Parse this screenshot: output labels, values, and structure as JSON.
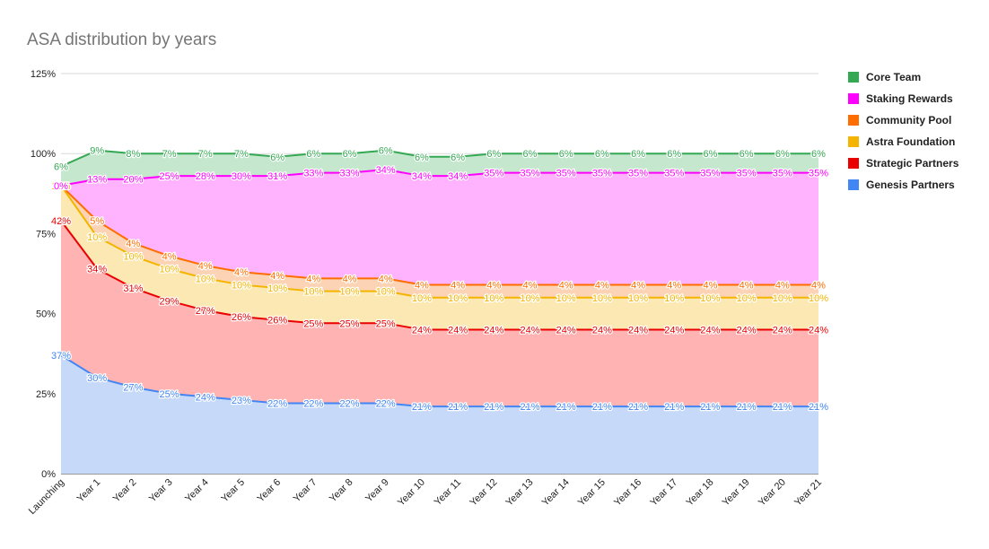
{
  "chart_data": {
    "type": "area",
    "title": "ASA distribution by years",
    "stacked": true,
    "ylim": [
      0,
      125
    ],
    "yticks": [
      "0%",
      "25%",
      "50%",
      "75%",
      "100%",
      "125%"
    ],
    "grid": true,
    "legend_position": "right",
    "categories": [
      "Launching",
      "Year 1",
      "Year 2",
      "Year 3",
      "Year 4",
      "Year 5",
      "Year 6",
      "Year 7",
      "Year 8",
      "Year 9",
      "Year 10",
      "Year 11",
      "Year 12",
      "Year 13",
      "Year 14",
      "Year 15",
      "Year 16",
      "Year 17",
      "Year 18",
      "Year 19",
      "Year 20",
      "Year 21"
    ],
    "series": [
      {
        "name": "Genesis Partners",
        "color": "#4285f4",
        "fill": "#c6d9f9",
        "values": [
          37,
          30,
          27,
          25,
          24,
          23,
          22,
          22,
          22,
          22,
          21,
          21,
          21,
          21,
          21,
          21,
          21,
          21,
          21,
          21,
          21,
          21
        ]
      },
      {
        "name": "Strategic Partners",
        "color": "#ea0000",
        "fill": "#ffb3b3",
        "values": [
          42,
          34,
          31,
          29,
          27,
          26,
          26,
          25,
          25,
          25,
          24,
          24,
          24,
          24,
          24,
          24,
          24,
          24,
          24,
          24,
          24,
          24
        ]
      },
      {
        "name": "Astra Foundation",
        "color": "#f4b400",
        "fill": "#fce8b2",
        "values": [
          11,
          10,
          10,
          10,
          10,
          10,
          10,
          10,
          10,
          10,
          10,
          10,
          10,
          10,
          10,
          10,
          10,
          10,
          10,
          10,
          10,
          10
        ]
      },
      {
        "name": "Community Pool",
        "color": "#ff6d00",
        "fill": "#fcd4b5",
        "values": [
          0,
          5,
          4,
          4,
          4,
          4,
          4,
          4,
          4,
          4,
          4,
          4,
          4,
          4,
          4,
          4,
          4,
          4,
          4,
          4,
          4,
          4
        ]
      },
      {
        "name": "Staking Rewards",
        "color": "#ff00ff",
        "fill": "#ffb3ff",
        "values": [
          0,
          13,
          20,
          25,
          28,
          30,
          31,
          33,
          33,
          34,
          34,
          34,
          35,
          35,
          35,
          35,
          35,
          35,
          35,
          35,
          35,
          35
        ]
      },
      {
        "name": "Core Team",
        "color": "#34a853",
        "fill": "#c5e7ce",
        "values": [
          6,
          9,
          8,
          7,
          7,
          7,
          6,
          6,
          6,
          6,
          6,
          6,
          6,
          6,
          6,
          6,
          6,
          6,
          6,
          6,
          6,
          6
        ]
      }
    ]
  }
}
